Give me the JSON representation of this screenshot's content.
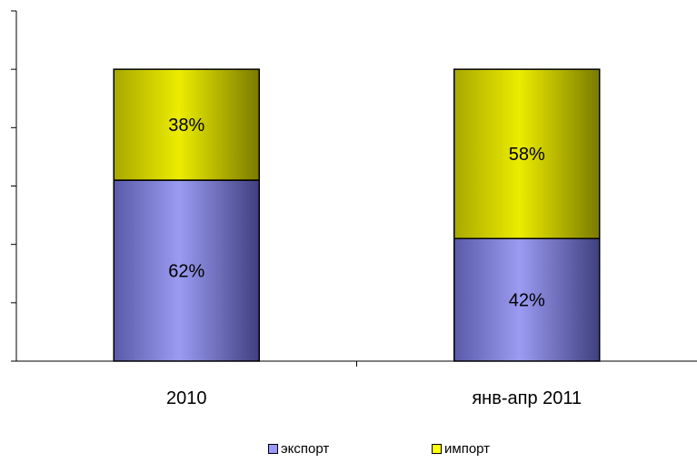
{
  "chart_data": {
    "type": "bar",
    "stacked": true,
    "categories": [
      "2010",
      "янв-апр 2011"
    ],
    "series": [
      {
        "name": "экспорт",
        "values": [
          62,
          42
        ],
        "labels": [
          "62%",
          "42%"
        ],
        "color": "#9999ff"
      },
      {
        "name": "импорт",
        "values": [
          38,
          58
        ],
        "labels": [
          "38%",
          "58%"
        ],
        "color": "#ffff00"
      }
    ],
    "ylim": [
      0,
      120
    ],
    "y_ticks": 6,
    "grid": false,
    "legend_position": "bottom",
    "title": "",
    "xlabel": "",
    "ylabel": ""
  }
}
